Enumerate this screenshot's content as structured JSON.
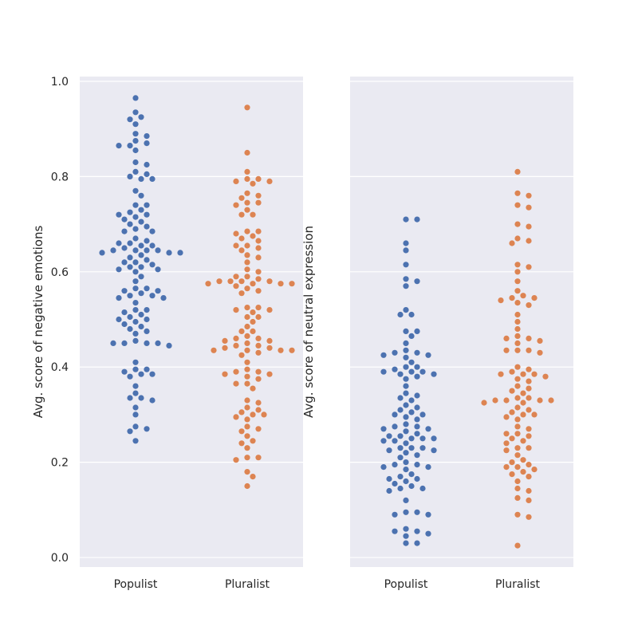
{
  "chart_data": [
    {
      "type": "scatter",
      "subtype": "swarm",
      "ylabel": "Avg. score of negative emotions",
      "xlabel": "",
      "categories": [
        "Populist",
        "Pluralist"
      ],
      "ylim": [
        -0.02,
        1.01
      ],
      "yticks": [
        "0.0",
        "0.2",
        "0.4",
        "0.6",
        "0.8",
        "1.0"
      ],
      "grid": true,
      "colors": {
        "Populist": "#4c72b0",
        "Pluralist": "#dd8452"
      },
      "series": [
        {
          "category": "Populist",
          "values": [
            0.965,
            0.935,
            0.925,
            0.92,
            0.91,
            0.89,
            0.885,
            0.875,
            0.87,
            0.865,
            0.865,
            0.855,
            0.83,
            0.825,
            0.81,
            0.805,
            0.8,
            0.795,
            0.795,
            0.77,
            0.76,
            0.74,
            0.74,
            0.73,
            0.725,
            0.72,
            0.72,
            0.715,
            0.71,
            0.705,
            0.7,
            0.695,
            0.69,
            0.685,
            0.685,
            0.67,
            0.665,
            0.66,
            0.66,
            0.655,
            0.655,
            0.65,
            0.645,
            0.645,
            0.645,
            0.645,
            0.64,
            0.64,
            0.64,
            0.635,
            0.63,
            0.625,
            0.62,
            0.62,
            0.615,
            0.61,
            0.61,
            0.605,
            0.605,
            0.6,
            0.59,
            0.58,
            0.565,
            0.565,
            0.56,
            0.56,
            0.555,
            0.55,
            0.55,
            0.545,
            0.545,
            0.535,
            0.52,
            0.52,
            0.515,
            0.51,
            0.505,
            0.5,
            0.5,
            0.495,
            0.49,
            0.485,
            0.48,
            0.475,
            0.47,
            0.455,
            0.45,
            0.45,
            0.45,
            0.45,
            0.445,
            0.41,
            0.395,
            0.395,
            0.39,
            0.385,
            0.385,
            0.38,
            0.36,
            0.345,
            0.335,
            0.335,
            0.33,
            0.315,
            0.3,
            0.275,
            0.27,
            0.265,
            0.245
          ]
        },
        {
          "category": "Pluralist",
          "values": [
            0.945,
            0.85,
            0.81,
            0.795,
            0.795,
            0.79,
            0.79,
            0.785,
            0.765,
            0.76,
            0.755,
            0.745,
            0.745,
            0.74,
            0.73,
            0.72,
            0.72,
            0.685,
            0.685,
            0.68,
            0.675,
            0.67,
            0.665,
            0.655,
            0.655,
            0.65,
            0.645,
            0.635,
            0.63,
            0.62,
            0.605,
            0.6,
            0.59,
            0.59,
            0.585,
            0.58,
            0.58,
            0.58,
            0.58,
            0.575,
            0.575,
            0.575,
            0.575,
            0.57,
            0.565,
            0.56,
            0.555,
            0.525,
            0.525,
            0.52,
            0.52,
            0.515,
            0.505,
            0.505,
            0.495,
            0.485,
            0.475,
            0.475,
            0.465,
            0.46,
            0.46,
            0.455,
            0.455,
            0.45,
            0.445,
            0.445,
            0.44,
            0.44,
            0.435,
            0.435,
            0.435,
            0.435,
            0.43,
            0.425,
            0.41,
            0.395,
            0.39,
            0.39,
            0.385,
            0.385,
            0.38,
            0.375,
            0.365,
            0.365,
            0.355,
            0.33,
            0.325,
            0.315,
            0.31,
            0.305,
            0.3,
            0.3,
            0.295,
            0.29,
            0.275,
            0.27,
            0.265,
            0.255,
            0.245,
            0.24,
            0.23,
            0.21,
            0.21,
            0.205,
            0.18,
            0.17,
            0.15
          ]
        }
      ]
    },
    {
      "type": "scatter",
      "subtype": "swarm",
      "ylabel": "Avg. score of neutral expression",
      "xlabel": "",
      "categories": [
        "Populist",
        "Pluralist"
      ],
      "ylim": [
        -0.02,
        1.01
      ],
      "yticks": [],
      "shared_y": true,
      "grid": true,
      "colors": {
        "Populist": "#4c72b0",
        "Pluralist": "#dd8452"
      },
      "series": [
        {
          "category": "Populist",
          "values": [
            0.71,
            0.71,
            0.66,
            0.645,
            0.615,
            0.585,
            0.58,
            0.57,
            0.52,
            0.51,
            0.51,
            0.475,
            0.475,
            0.465,
            0.45,
            0.435,
            0.43,
            0.43,
            0.425,
            0.425,
            0.42,
            0.41,
            0.4,
            0.4,
            0.395,
            0.39,
            0.39,
            0.39,
            0.385,
            0.385,
            0.38,
            0.375,
            0.36,
            0.345,
            0.34,
            0.335,
            0.33,
            0.32,
            0.315,
            0.31,
            0.305,
            0.3,
            0.3,
            0.295,
            0.29,
            0.28,
            0.275,
            0.275,
            0.27,
            0.27,
            0.265,
            0.26,
            0.255,
            0.255,
            0.25,
            0.25,
            0.25,
            0.245,
            0.245,
            0.24,
            0.23,
            0.23,
            0.23,
            0.225,
            0.225,
            0.22,
            0.215,
            0.21,
            0.2,
            0.195,
            0.195,
            0.19,
            0.19,
            0.185,
            0.175,
            0.17,
            0.165,
            0.165,
            0.16,
            0.155,
            0.15,
            0.145,
            0.145,
            0.14,
            0.12,
            0.095,
            0.095,
            0.09,
            0.09,
            0.06,
            0.055,
            0.055,
            0.05,
            0.045,
            0.03,
            0.03
          ]
        },
        {
          "category": "Pluralist",
          "values": [
            0.81,
            0.765,
            0.76,
            0.74,
            0.735,
            0.7,
            0.695,
            0.67,
            0.665,
            0.66,
            0.615,
            0.61,
            0.6,
            0.58,
            0.56,
            0.55,
            0.545,
            0.545,
            0.54,
            0.535,
            0.53,
            0.51,
            0.495,
            0.48,
            0.465,
            0.46,
            0.46,
            0.455,
            0.45,
            0.435,
            0.435,
            0.435,
            0.43,
            0.4,
            0.395,
            0.39,
            0.385,
            0.385,
            0.385,
            0.38,
            0.375,
            0.37,
            0.36,
            0.355,
            0.35,
            0.345,
            0.335,
            0.335,
            0.33,
            0.33,
            0.33,
            0.33,
            0.325,
            0.325,
            0.315,
            0.31,
            0.305,
            0.3,
            0.3,
            0.295,
            0.29,
            0.275,
            0.27,
            0.26,
            0.26,
            0.255,
            0.25,
            0.245,
            0.24,
            0.23,
            0.23,
            0.225,
            0.215,
            0.205,
            0.2,
            0.195,
            0.19,
            0.19,
            0.185,
            0.18,
            0.175,
            0.17,
            0.16,
            0.145,
            0.14,
            0.125,
            0.12,
            0.09,
            0.085,
            0.025
          ]
        }
      ]
    }
  ]
}
